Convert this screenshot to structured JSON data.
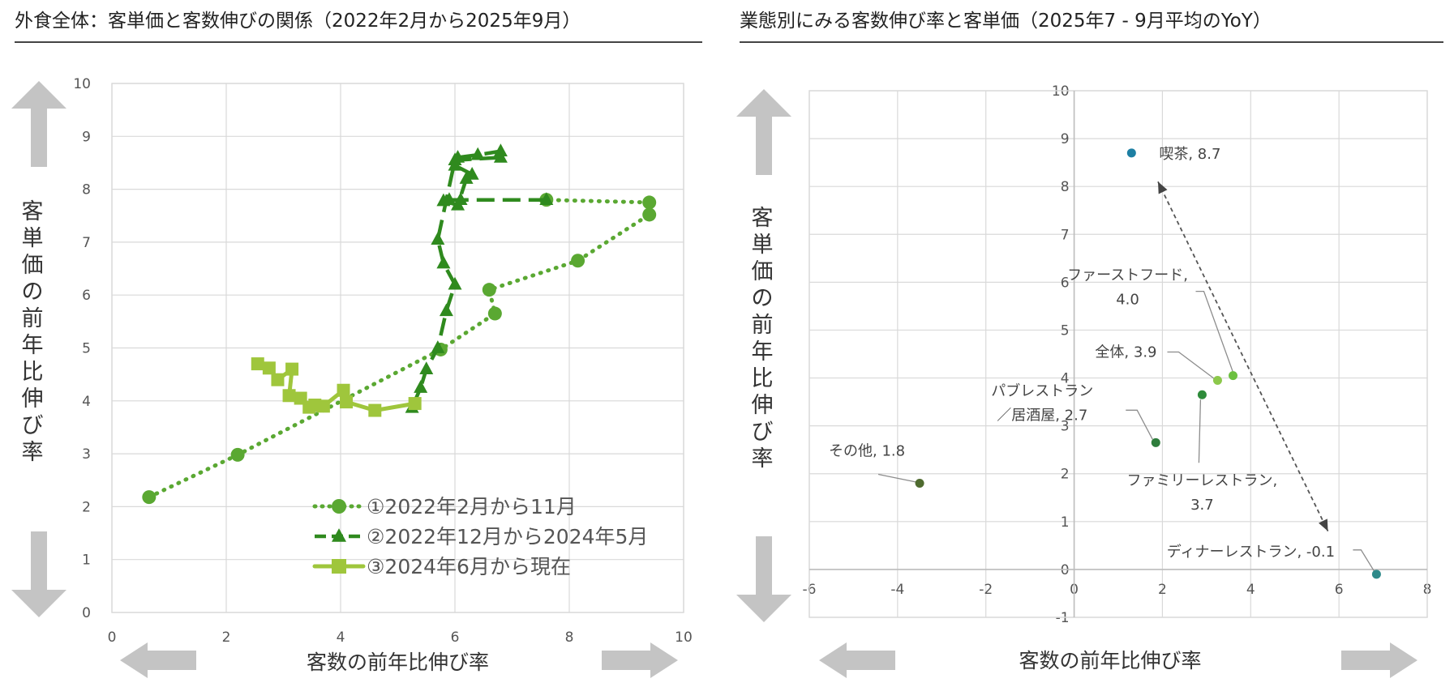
{
  "left": {
    "title": "外食全体：客単価と客数伸びの関係（2022年2月から2025年9月）"
  },
  "right": {
    "title": "業態別にみる客数伸び率と客単価（2025年7 - 9月平均のYoY）"
  },
  "colors": {
    "series1": "#5aa832",
    "series2": "#2f8a1e",
    "series3": "#9fc63c",
    "arrow": "#c4c4c4",
    "grid": "#d9d9d9"
  },
  "chart_data": [
    {
      "type": "line",
      "xlabel": "客数の前年比伸び率",
      "ylabel": "客単価の前年比伸び率",
      "xlim": [
        0,
        10
      ],
      "ylim": [
        0,
        10
      ],
      "xticks": [
        0,
        2,
        4,
        6,
        8,
        10
      ],
      "yticks": [
        0,
        1,
        2,
        3,
        4,
        5,
        6,
        7,
        8,
        9,
        10
      ],
      "grid": true,
      "legend_position": "bottom-right",
      "series": [
        {
          "name": "①2022年2月から11月",
          "marker": "circle",
          "line": "dotted",
          "points": [
            [
              0.65,
              2.18
            ],
            [
              2.2,
              2.98
            ],
            [
              5.75,
              4.97
            ],
            [
              6.7,
              5.65
            ],
            [
              6.6,
              6.1
            ],
            [
              8.15,
              6.65
            ],
            [
              9.4,
              7.52
            ],
            [
              9.4,
              7.75
            ],
            [
              7.6,
              7.8
            ]
          ]
        },
        {
          "name": "②2022年12月から2024年5月",
          "marker": "triangle",
          "line": "dashed",
          "points": [
            [
              7.6,
              7.8
            ],
            [
              6.1,
              7.8
            ],
            [
              5.9,
              7.8
            ],
            [
              5.8,
              7.78
            ],
            [
              6.05,
              7.7
            ],
            [
              6.2,
              8.2
            ],
            [
              6.3,
              8.28
            ],
            [
              6.0,
              8.45
            ],
            [
              6.05,
              8.6
            ],
            [
              6.4,
              8.65
            ],
            [
              6.8,
              8.72
            ],
            [
              6.8,
              8.6
            ],
            [
              6.0,
              8.55
            ],
            [
              5.7,
              7.05
            ],
            [
              5.8,
              6.6
            ],
            [
              6.0,
              6.2
            ],
            [
              5.85,
              5.7
            ],
            [
              5.7,
              5.0
            ],
            [
              5.5,
              4.6
            ],
            [
              5.4,
              4.25
            ],
            [
              5.25,
              3.87
            ]
          ]
        },
        {
          "name": "③2024年6月から現在",
          "marker": "square",
          "line": "solid",
          "points": [
            [
              5.3,
              3.95
            ],
            [
              4.6,
              3.82
            ],
            [
              4.1,
              3.98
            ],
            [
              4.05,
              4.2
            ],
            [
              3.7,
              3.9
            ],
            [
              3.55,
              3.92
            ],
            [
              3.45,
              3.88
            ],
            [
              3.3,
              4.05
            ],
            [
              3.1,
              4.1
            ],
            [
              3.15,
              4.6
            ],
            [
              2.9,
              4.4
            ],
            [
              2.75,
              4.62
            ],
            [
              2.55,
              4.7
            ]
          ]
        }
      ]
    },
    {
      "type": "scatter",
      "xlabel": "客数の前年比伸び率",
      "ylabel": "客単価の前年比伸び率",
      "xlim": [
        -6,
        8
      ],
      "ylim": [
        -1,
        10
      ],
      "xticks": [
        -6,
        -4,
        -2,
        0,
        2,
        4,
        6,
        8
      ],
      "yticks": [
        -1,
        0,
        1,
        2,
        3,
        4,
        5,
        6,
        7,
        8,
        9,
        10
      ],
      "grid": true,
      "points": [
        {
          "label": "喫茶, 8.7",
          "x": 1.3,
          "y": 8.7,
          "color": "#1d7fa3"
        },
        {
          "label": "ファーストフード,\n4.0",
          "x": 3.6,
          "y": 4.05,
          "color": "#6cc040"
        },
        {
          "label": "全体, 3.9",
          "x": 3.25,
          "y": 3.95,
          "color": "#8cc84b"
        },
        {
          "label": "ファミリーレストラン,\n3.7",
          "x": 2.9,
          "y": 3.65,
          "color": "#2e8b3a"
        },
        {
          "label": "パブレストラン\n／居酒屋, 2.7",
          "x": 1.85,
          "y": 2.65,
          "color": "#2e7d3c"
        },
        {
          "label": "その他, 1.8",
          "x": -3.5,
          "y": 1.8,
          "color": "#4f6b2f"
        },
        {
          "label": "ディナーレストラン, -0.1",
          "x": 6.85,
          "y": -0.1,
          "color": "#2e8a8a"
        }
      ],
      "annotation_arrow": {
        "from": [
          1.9,
          8.1
        ],
        "to": [
          5.75,
          0.8
        ]
      }
    }
  ]
}
